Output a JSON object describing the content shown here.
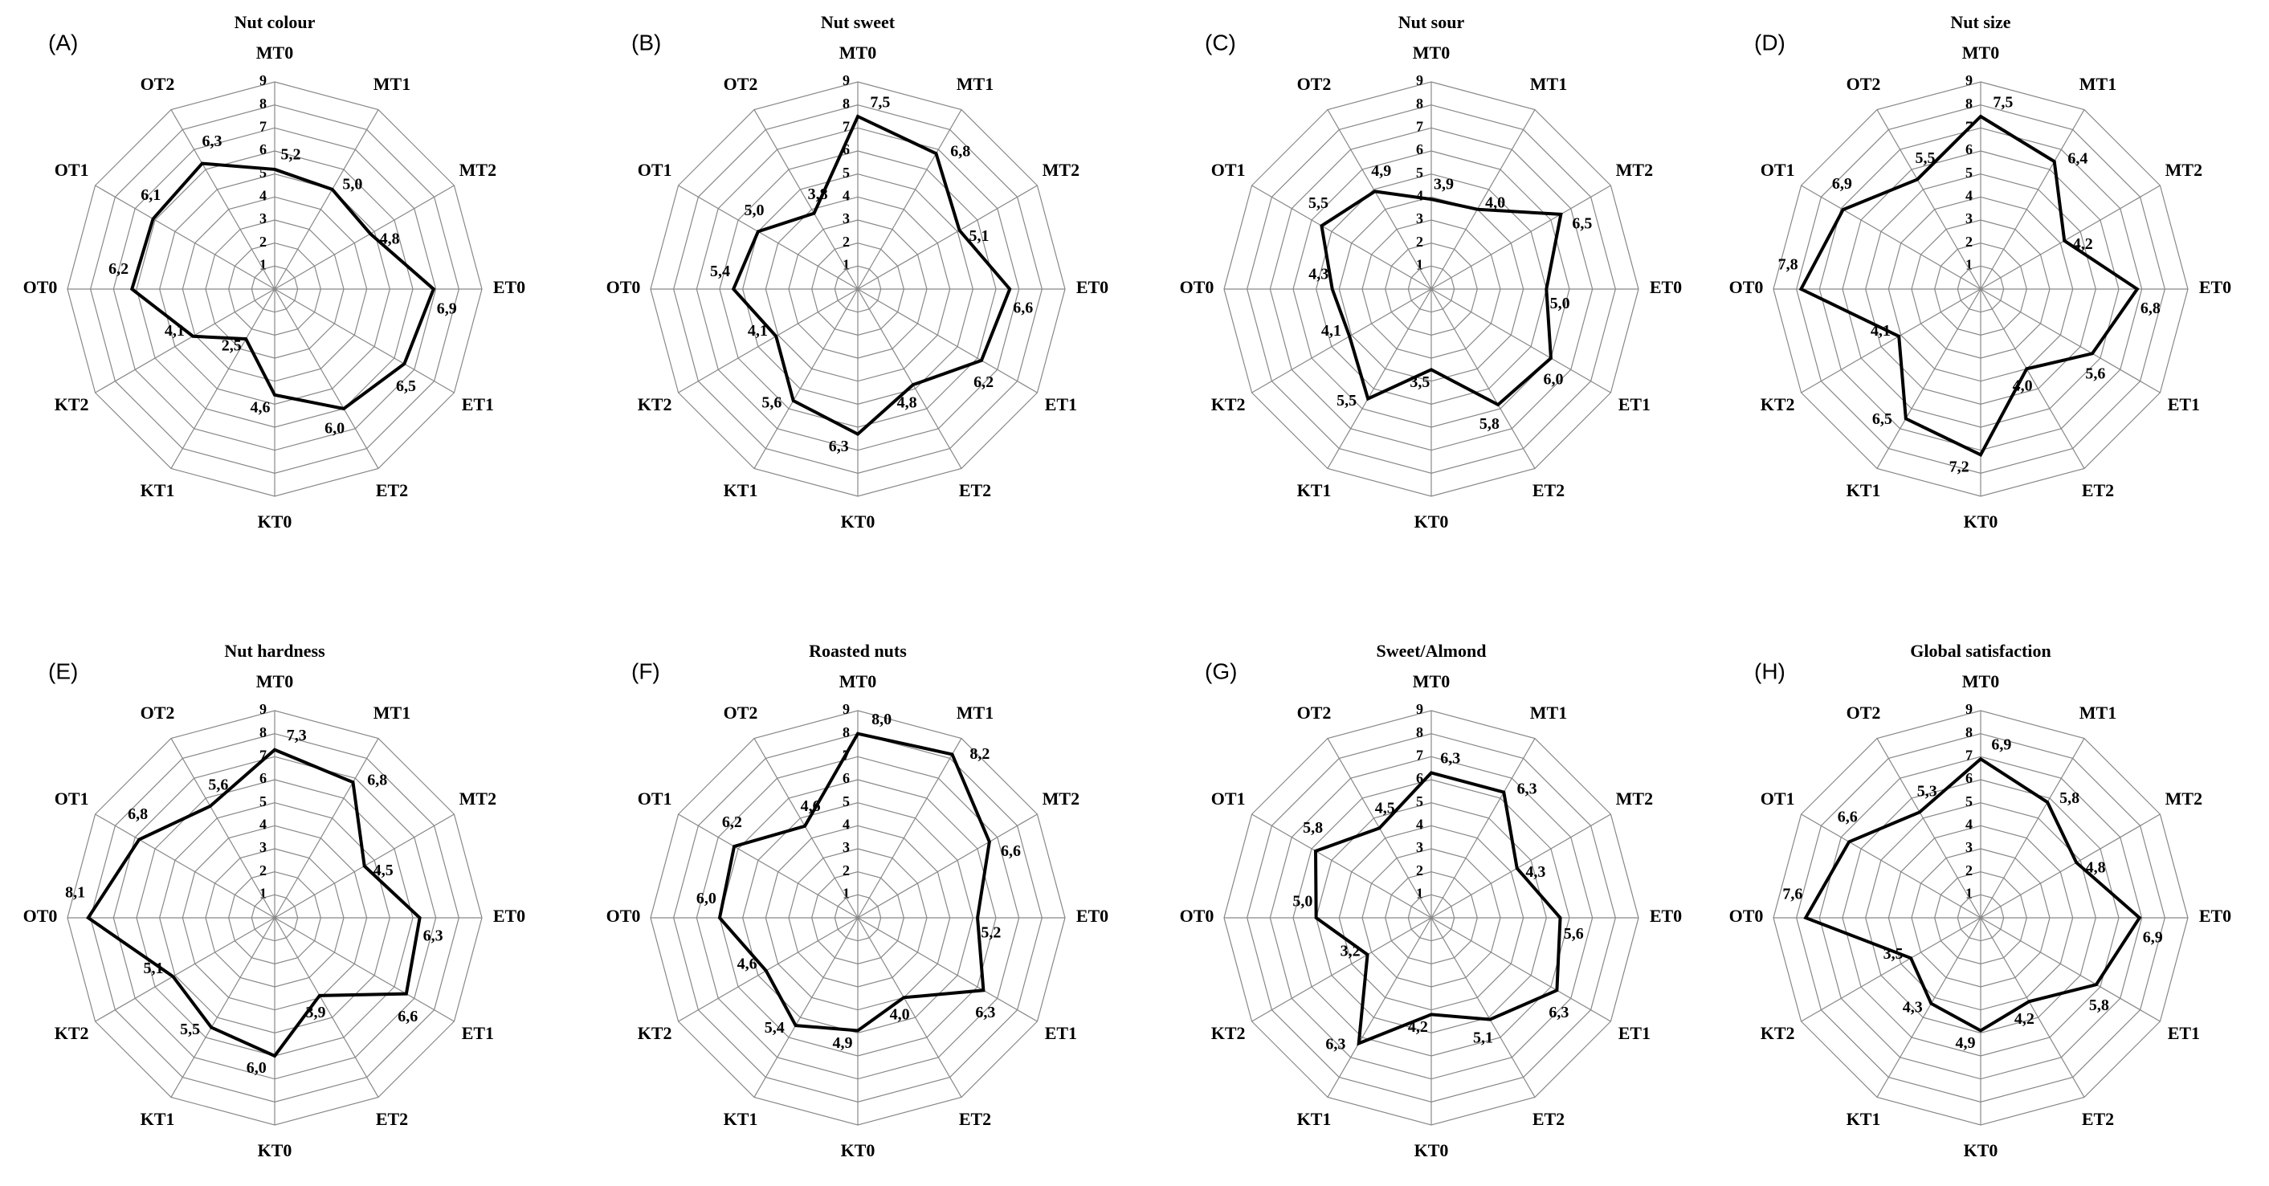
{
  "chart_data": [
    {
      "type": "radar",
      "label": "(A)",
      "title": "Nut colour",
      "categories": [
        "MT0",
        "MT1",
        "MT2",
        "ET0",
        "ET1",
        "ET2",
        "KT0",
        "KT1",
        "KT2",
        "OT0",
        "OT1",
        "OT2"
      ],
      "values": [
        5.2,
        5.0,
        4.8,
        6.9,
        6.5,
        6.0,
        4.6,
        2.5,
        4.1,
        6.2,
        6.1,
        6.3
      ],
      "value_labels": [
        "5,2",
        "5,0",
        "4,8",
        "6,9",
        "6,5",
        "6,0",
        "4,6",
        "2,5",
        "4,1",
        "6,2",
        "6,1",
        "6,3"
      ],
      "rlim": [
        0,
        9
      ],
      "rticks": [
        1,
        2,
        3,
        4,
        5,
        6,
        7,
        8,
        9
      ],
      "color": "#000000"
    },
    {
      "type": "radar",
      "label": "(B)",
      "title": "Nut sweet",
      "categories": [
        "MT0",
        "MT1",
        "MT2",
        "ET0",
        "ET1",
        "ET2",
        "KT0",
        "KT1",
        "KT2",
        "OT0",
        "OT1",
        "OT2"
      ],
      "values": [
        7.5,
        6.8,
        5.1,
        6.6,
        6.2,
        4.8,
        6.3,
        5.6,
        4.1,
        5.4,
        5.0,
        3.8
      ],
      "value_labels": [
        "7,5",
        "6,8",
        "5,1",
        "6,6",
        "6,2",
        "4,8",
        "6,3",
        "5,6",
        "4,1",
        "5,4",
        "5,0",
        "3,8"
      ],
      "rlim": [
        0,
        9
      ],
      "rticks": [
        1,
        2,
        3,
        4,
        5,
        6,
        7,
        8,
        9
      ],
      "color": "#000000"
    },
    {
      "type": "radar",
      "label": "(C)",
      "title": "Nut sour",
      "categories": [
        "MT0",
        "MT1",
        "MT2",
        "ET0",
        "ET1",
        "ET2",
        "KT0",
        "KT1",
        "KT2",
        "OT0",
        "OT1",
        "OT2"
      ],
      "values": [
        3.9,
        4.0,
        6.5,
        5.0,
        6.0,
        5.8,
        3.5,
        5.5,
        4.1,
        4.3,
        5.5,
        4.9
      ],
      "value_labels": [
        "3,9",
        "4,0",
        "6,5",
        "5,0",
        "6,0",
        "5,8",
        "3,5",
        "5,5",
        "4,1",
        "4,3",
        "5,5",
        "4,9"
      ],
      "rlim": [
        0,
        9
      ],
      "rticks": [
        1,
        2,
        3,
        4,
        5,
        6,
        7,
        8,
        9
      ],
      "color": "#000000"
    },
    {
      "type": "radar",
      "label": "(D)",
      "title": "Nut size",
      "categories": [
        "MT0",
        "MT1",
        "MT2",
        "ET0",
        "ET1",
        "ET2",
        "KT0",
        "KT1",
        "KT2",
        "OT0",
        "OT1",
        "OT2"
      ],
      "values": [
        7.5,
        6.4,
        4.2,
        6.8,
        5.6,
        4.0,
        7.2,
        6.5,
        4.1,
        7.8,
        6.9,
        5.5
      ],
      "value_labels": [
        "7,5",
        "6,4",
        "4,2",
        "6,8",
        "5,6",
        "4,0",
        "7,2",
        "6,5",
        "4,1",
        "7,8",
        "6,9",
        "5,5"
      ],
      "rlim": [
        0,
        9
      ],
      "rticks": [
        1,
        2,
        3,
        4,
        5,
        6,
        7,
        8,
        9
      ],
      "color": "#000000"
    },
    {
      "type": "radar",
      "label": "(E)",
      "title": "Nut hardness",
      "categories": [
        "MT0",
        "MT1",
        "MT2",
        "ET0",
        "ET1",
        "ET2",
        "KT0",
        "KT1",
        "KT2",
        "OT0",
        "OT1",
        "OT2"
      ],
      "values": [
        7.3,
        6.8,
        4.5,
        6.3,
        6.6,
        3.9,
        6.0,
        5.5,
        5.1,
        8.1,
        6.8,
        5.6
      ],
      "value_labels": [
        "7,3",
        "6,8",
        "4,5",
        "6,3",
        "6,6",
        "3,9",
        "6,0",
        "5,5",
        "5,1",
        "8,1",
        "6,8",
        "5,6"
      ],
      "rlim": [
        0,
        9
      ],
      "rticks": [
        1,
        2,
        3,
        4,
        5,
        6,
        7,
        8,
        9
      ],
      "color": "#000000"
    },
    {
      "type": "radar",
      "label": "(F)",
      "title": "Roasted nuts",
      "categories": [
        "MT0",
        "MT1",
        "MT2",
        "ET0",
        "ET1",
        "ET2",
        "KT0",
        "KT1",
        "KT2",
        "OT0",
        "OT1",
        "OT2"
      ],
      "values": [
        8.0,
        8.2,
        6.6,
        5.2,
        6.3,
        4.0,
        4.9,
        5.4,
        4.6,
        6.0,
        6.2,
        4.6
      ],
      "value_labels": [
        "8,0",
        "8,2",
        "6,6",
        "5,2",
        "6,3",
        "4,0",
        "4,9",
        "5,4",
        "4,6",
        "6,0",
        "6,2",
        "4,6"
      ],
      "rlim": [
        0,
        9
      ],
      "rticks": [
        1,
        2,
        3,
        4,
        5,
        6,
        7,
        8,
        9
      ],
      "color": "#000000"
    },
    {
      "type": "radar",
      "label": "(G)",
      "title": "Sweet/Almond",
      "categories": [
        "MT0",
        "MT1",
        "MT2",
        "ET0",
        "ET1",
        "ET2",
        "KT0",
        "KT1",
        "KT2",
        "OT0",
        "OT1",
        "OT2"
      ],
      "values": [
        6.3,
        6.3,
        4.3,
        5.6,
        6.3,
        5.1,
        4.2,
        6.3,
        3.2,
        5.0,
        5.8,
        4.5
      ],
      "value_labels": [
        "6,3",
        "6,3",
        "4,3",
        "5,6",
        "6,3",
        "5,1",
        "4,2",
        "6,3",
        "3,2",
        "5,0",
        "5,8",
        "4,5"
      ],
      "rlim": [
        0,
        9
      ],
      "rticks": [
        1,
        2,
        3,
        4,
        5,
        6,
        7,
        8,
        9
      ],
      "color": "#000000"
    },
    {
      "type": "radar",
      "label": "(H)",
      "title": "Global satisfaction",
      "categories": [
        "MT0",
        "MT1",
        "MT2",
        "ET0",
        "ET1",
        "ET2",
        "KT0",
        "KT1",
        "KT2",
        "OT0",
        "OT1",
        "OT2"
      ],
      "values": [
        6.9,
        5.8,
        4.8,
        6.9,
        5.8,
        4.2,
        4.9,
        4.3,
        3.5,
        7.6,
        6.6,
        5.3
      ],
      "value_labels": [
        "6,9",
        "5,8",
        "4,8",
        "6,9",
        "5,8",
        "4,2",
        "4,9",
        "4,3",
        "3,5",
        "7,6",
        "6,6",
        "5,3"
      ],
      "rlim": [
        0,
        9
      ],
      "rticks": [
        1,
        2,
        3,
        4,
        5,
        6,
        7,
        8,
        9
      ],
      "color": "#000000"
    }
  ]
}
